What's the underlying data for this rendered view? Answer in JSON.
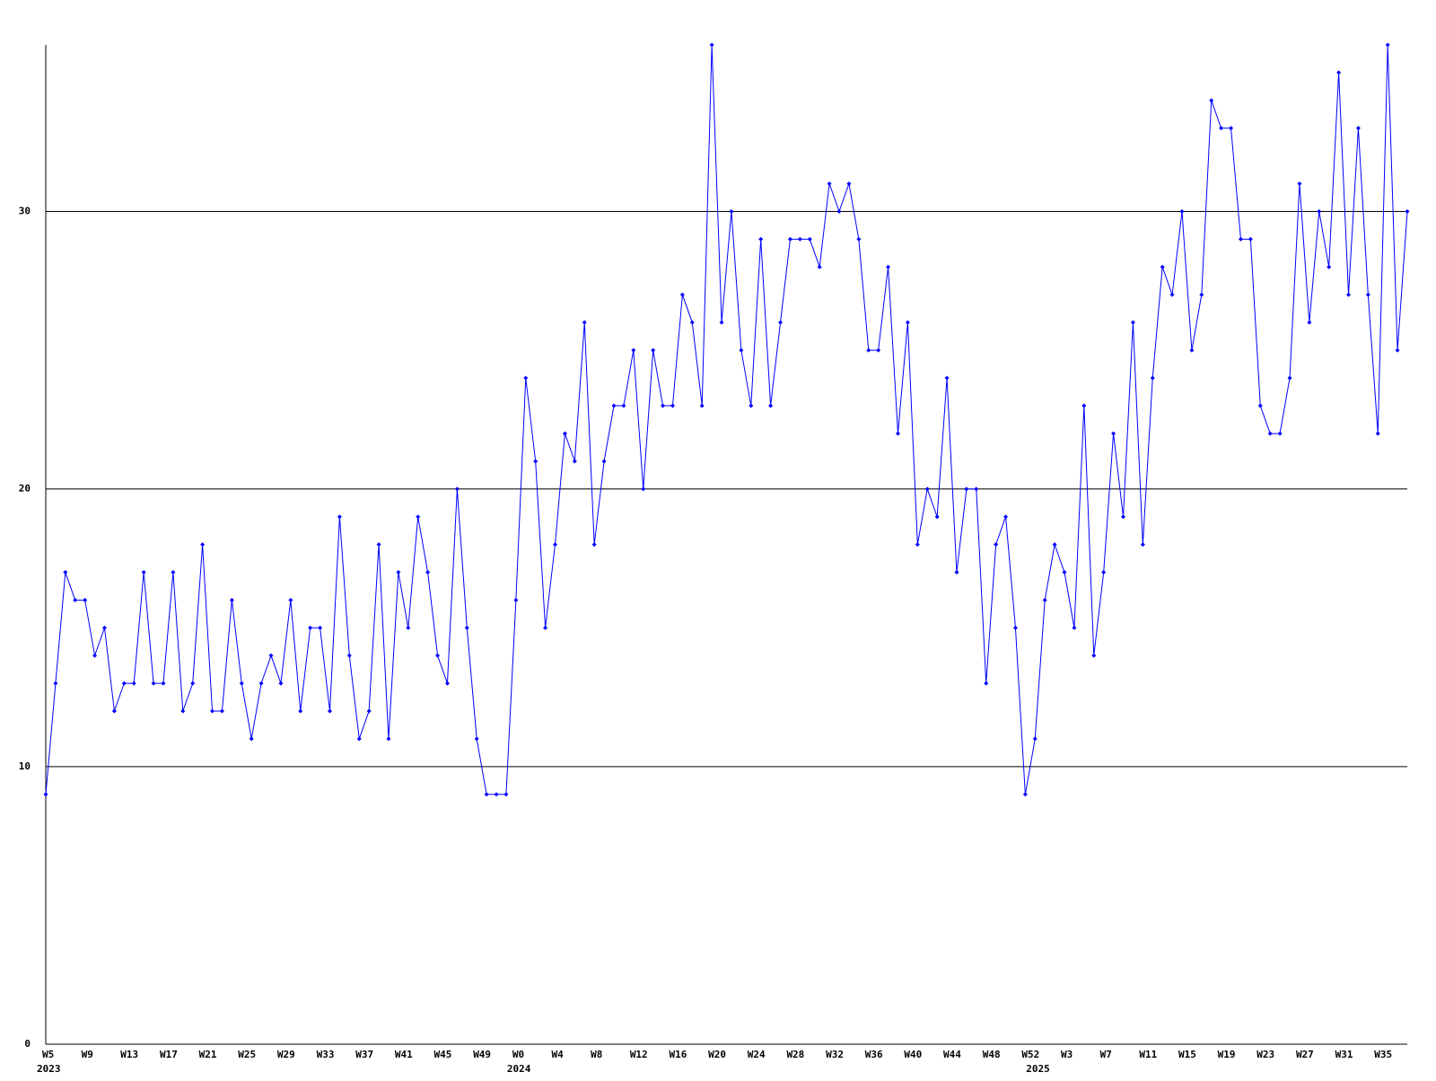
{
  "chart_data": {
    "type": "line",
    "categories": [
      "W5",
      null,
      null,
      null,
      "W9",
      null,
      null,
      null,
      "W13",
      null,
      null,
      null,
      "W17",
      null,
      null,
      null,
      "W21",
      null,
      null,
      null,
      "W25",
      null,
      null,
      null,
      "W29",
      null,
      null,
      null,
      "W33",
      null,
      null,
      null,
      "W37",
      null,
      null,
      null,
      "W41",
      null,
      null,
      null,
      "W45",
      null,
      null,
      null,
      "W49",
      null,
      null,
      null,
      "W0",
      null,
      null,
      null,
      "W4",
      null,
      null,
      null,
      "W8",
      null,
      null,
      null,
      "W12",
      null,
      null,
      null,
      "W16",
      null,
      null,
      null,
      "W20",
      null,
      null,
      null,
      "W24",
      null,
      null,
      null,
      "W28",
      null,
      null,
      null,
      "W32",
      null,
      null,
      null,
      "W36",
      null,
      null,
      null,
      "W40",
      null,
      null,
      null,
      "W44",
      null,
      null,
      null,
      "W48",
      null,
      null,
      null,
      "W52",
      null,
      null,
      null,
      "W3",
      null,
      null,
      null,
      "W7",
      null,
      null,
      null,
      "W11",
      null,
      null,
      null,
      "W15",
      null,
      null,
      null,
      "W19",
      null,
      null,
      null,
      "W23",
      null,
      null,
      null,
      "W27",
      null,
      null,
      null,
      "W31",
      null,
      null,
      null,
      "W35",
      null,
      null,
      null
    ],
    "year_labels": [
      "2023",
      "2024",
      "2025"
    ],
    "series": [
      {
        "color": "#0000ff",
        "values": [
          9,
          13,
          17,
          16,
          16,
          14,
          15,
          12,
          13,
          13,
          17,
          13,
          13,
          17,
          12,
          13,
          18,
          12,
          12,
          16,
          13,
          11,
          13,
          14,
          13,
          16,
          12,
          15,
          15,
          12,
          19,
          14,
          11,
          12,
          18,
          11,
          17,
          15,
          19,
          17,
          14,
          13,
          20,
          15,
          11,
          9,
          9,
          9,
          16,
          24,
          21,
          15,
          18,
          22,
          21,
          26,
          18,
          21,
          23,
          23,
          25,
          20,
          25,
          23,
          23,
          27,
          26,
          23,
          36,
          26,
          30,
          25,
          23,
          29,
          23,
          26,
          29,
          29,
          29,
          28,
          31,
          30,
          31,
          29,
          25,
          25,
          28,
          22,
          26,
          18,
          20,
          19,
          24,
          17,
          20,
          20,
          13,
          18,
          19,
          15,
          9,
          11,
          16,
          18,
          17,
          15,
          23,
          14,
          17,
          22,
          19,
          26,
          18,
          24,
          28,
          27,
          30,
          25,
          27,
          34,
          33,
          33,
          29,
          29,
          23,
          22,
          22,
          24,
          31,
          26,
          30,
          28,
          35,
          27,
          33,
          27,
          22,
          36,
          25,
          30
        ]
      }
    ],
    "ylim": [
      0,
      36
    ],
    "yticks": [
      0,
      10,
      20,
      30
    ],
    "grid": true
  }
}
